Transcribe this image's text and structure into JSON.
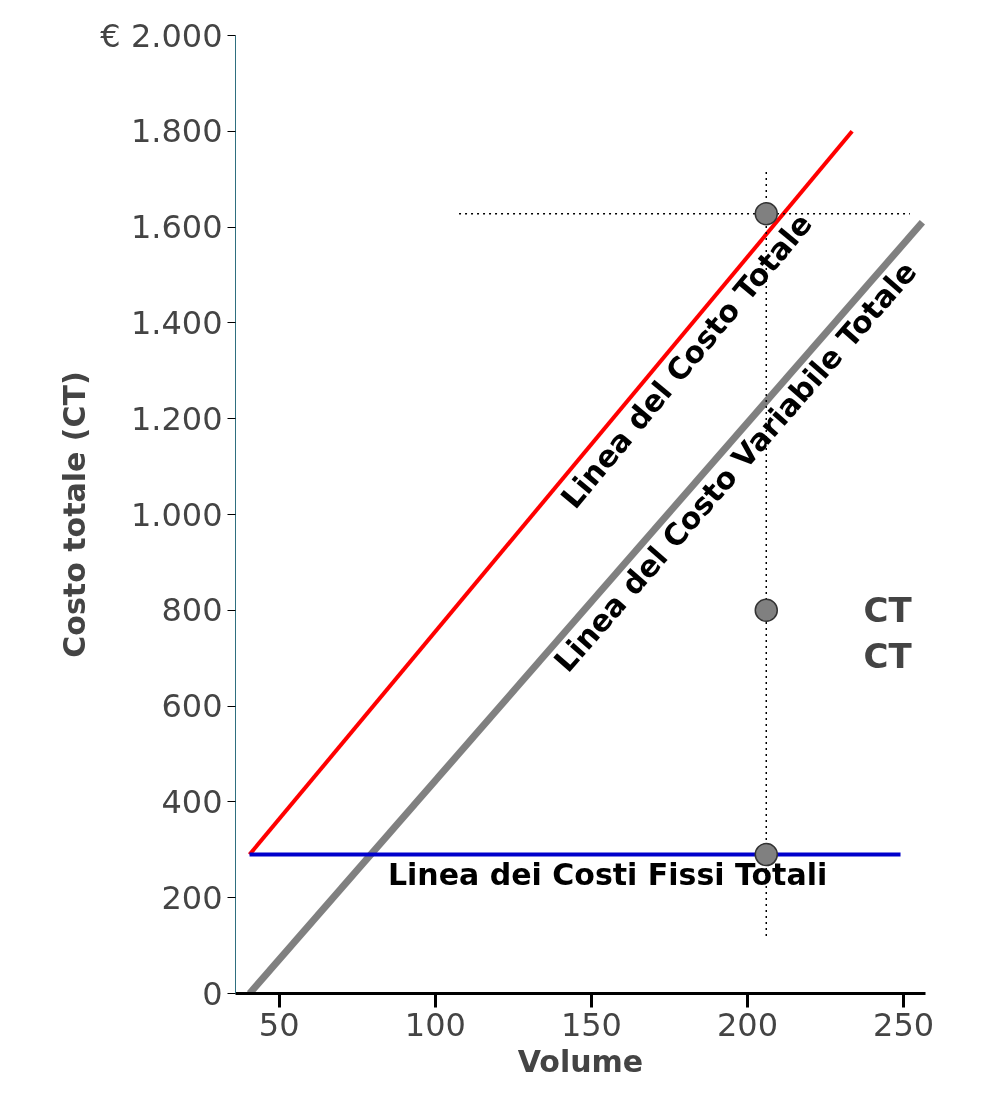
{
  "chart_data": {
    "type": "line",
    "xlabel": "Volume",
    "ylabel": "Costo totale (CT)",
    "xlim": [
      36,
      257
    ],
    "ylim": [
      0,
      2000
    ],
    "xticks": [
      50,
      100,
      150,
      200,
      250
    ],
    "yticks": [
      {
        "value": 0,
        "label": "0"
      },
      {
        "value": 200,
        "label": "200"
      },
      {
        "value": 400,
        "label": "400"
      },
      {
        "value": 600,
        "label": "600"
      },
      {
        "value": 800,
        "label": "800"
      },
      {
        "value": 1000,
        "label": "1.000"
      },
      {
        "value": 1200,
        "label": "1.200"
      },
      {
        "value": 1400,
        "label": "1.400"
      },
      {
        "value": 1600,
        "label": "1.600"
      },
      {
        "value": 1800,
        "label": "1.800"
      },
      {
        "value": 2000,
        "label": "€ 2.000"
      }
    ],
    "grid": false,
    "series": [
      {
        "name": "Linea del Costo Totale",
        "color": "#ff0000",
        "x": [
          40.5,
          233.5
        ],
        "values": [
          290,
          1800
        ]
      },
      {
        "name": "Linea del Costo Variabile Totale",
        "color": "#808080",
        "x": [
          40.5,
          256
        ],
        "values": [
          0,
          1610
        ]
      },
      {
        "name": "Linea dei Costi Fissi Totali",
        "color": "#0000cc",
        "x": [
          40.5,
          249
        ],
        "values": [
          290,
          290
        ]
      },
      {
        "type": "line",
        "color": "#000000",
        "line_style": "dotted",
        "x": [
          206,
          206
        ],
        "values": [
          120,
          1718
        ]
      },
      {
        "type": "line",
        "color": "#000000",
        "line_style": "dotted",
        "x": [
          107.6,
          252
        ],
        "values": [
          1628,
          1628
        ]
      },
      {
        "type": "scatter",
        "color": "#808080",
        "marker": "circle",
        "x": [
          206,
          206,
          206
        ],
        "values": [
          1628,
          800,
          290
        ]
      }
    ],
    "annotations": [
      "CT",
      "CT"
    ]
  }
}
